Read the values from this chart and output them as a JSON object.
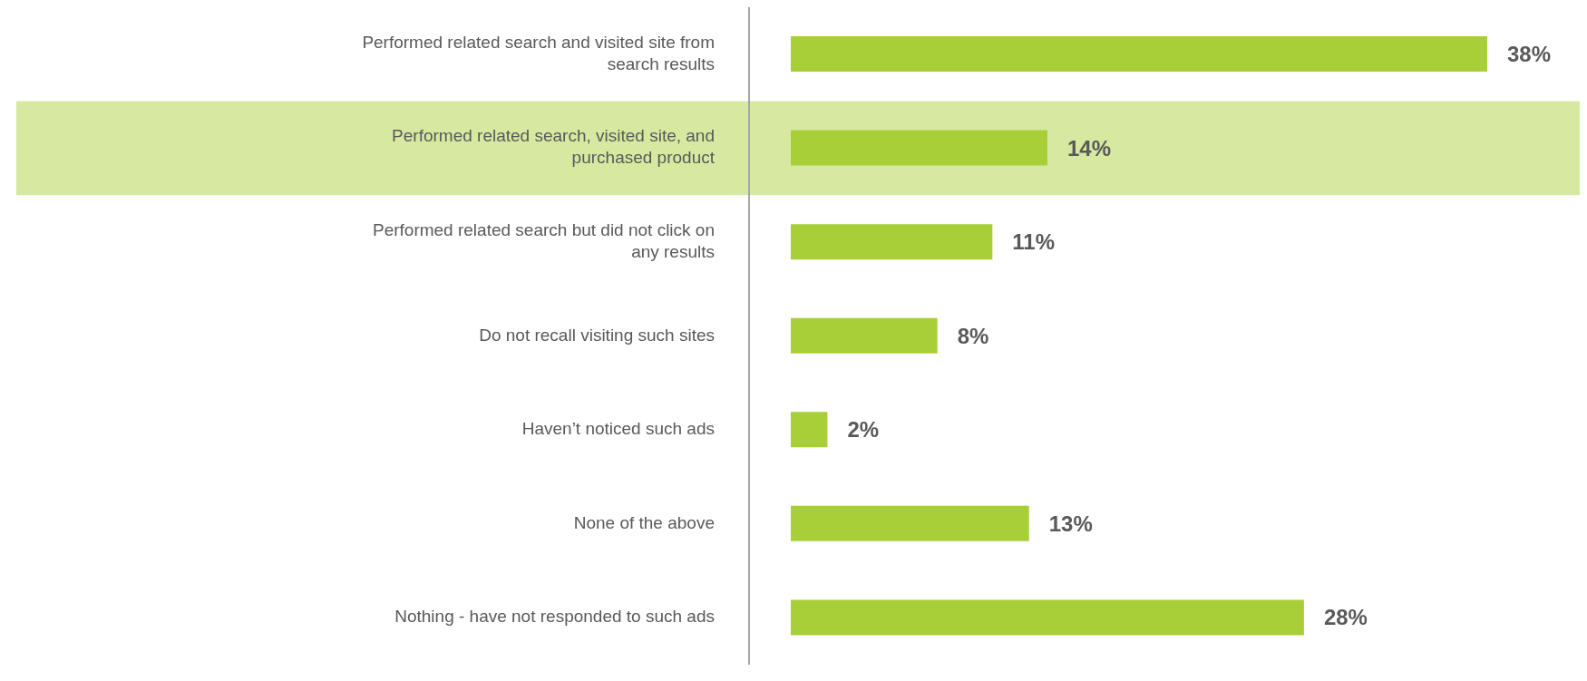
{
  "chart_data": {
    "type": "bar",
    "orientation": "horizontal",
    "categories": [
      "Performed related search and visited site from search results",
      "Performed related search, visited site, and purchased product",
      "Performed related search but did not click on any results",
      "Do not recall visiting such sites",
      "Haven’t noticed such ads",
      "None of the above",
      "Nothing - have not responded to such ads"
    ],
    "values": [
      38,
      14,
      11,
      8,
      2,
      13,
      28
    ],
    "value_labels": [
      "38%",
      "14%",
      "11%",
      "8%",
      "2%",
      "13%",
      "28%"
    ],
    "color": "#a8cf38",
    "bands": [
      {
        "axis": "y",
        "from": "Performed related search, visited site, and purchased product",
        "to": "Performed related search, visited site, and purchased product",
        "color": "#d7e9a1"
      }
    ],
    "tick_labels": "y"
  }
}
